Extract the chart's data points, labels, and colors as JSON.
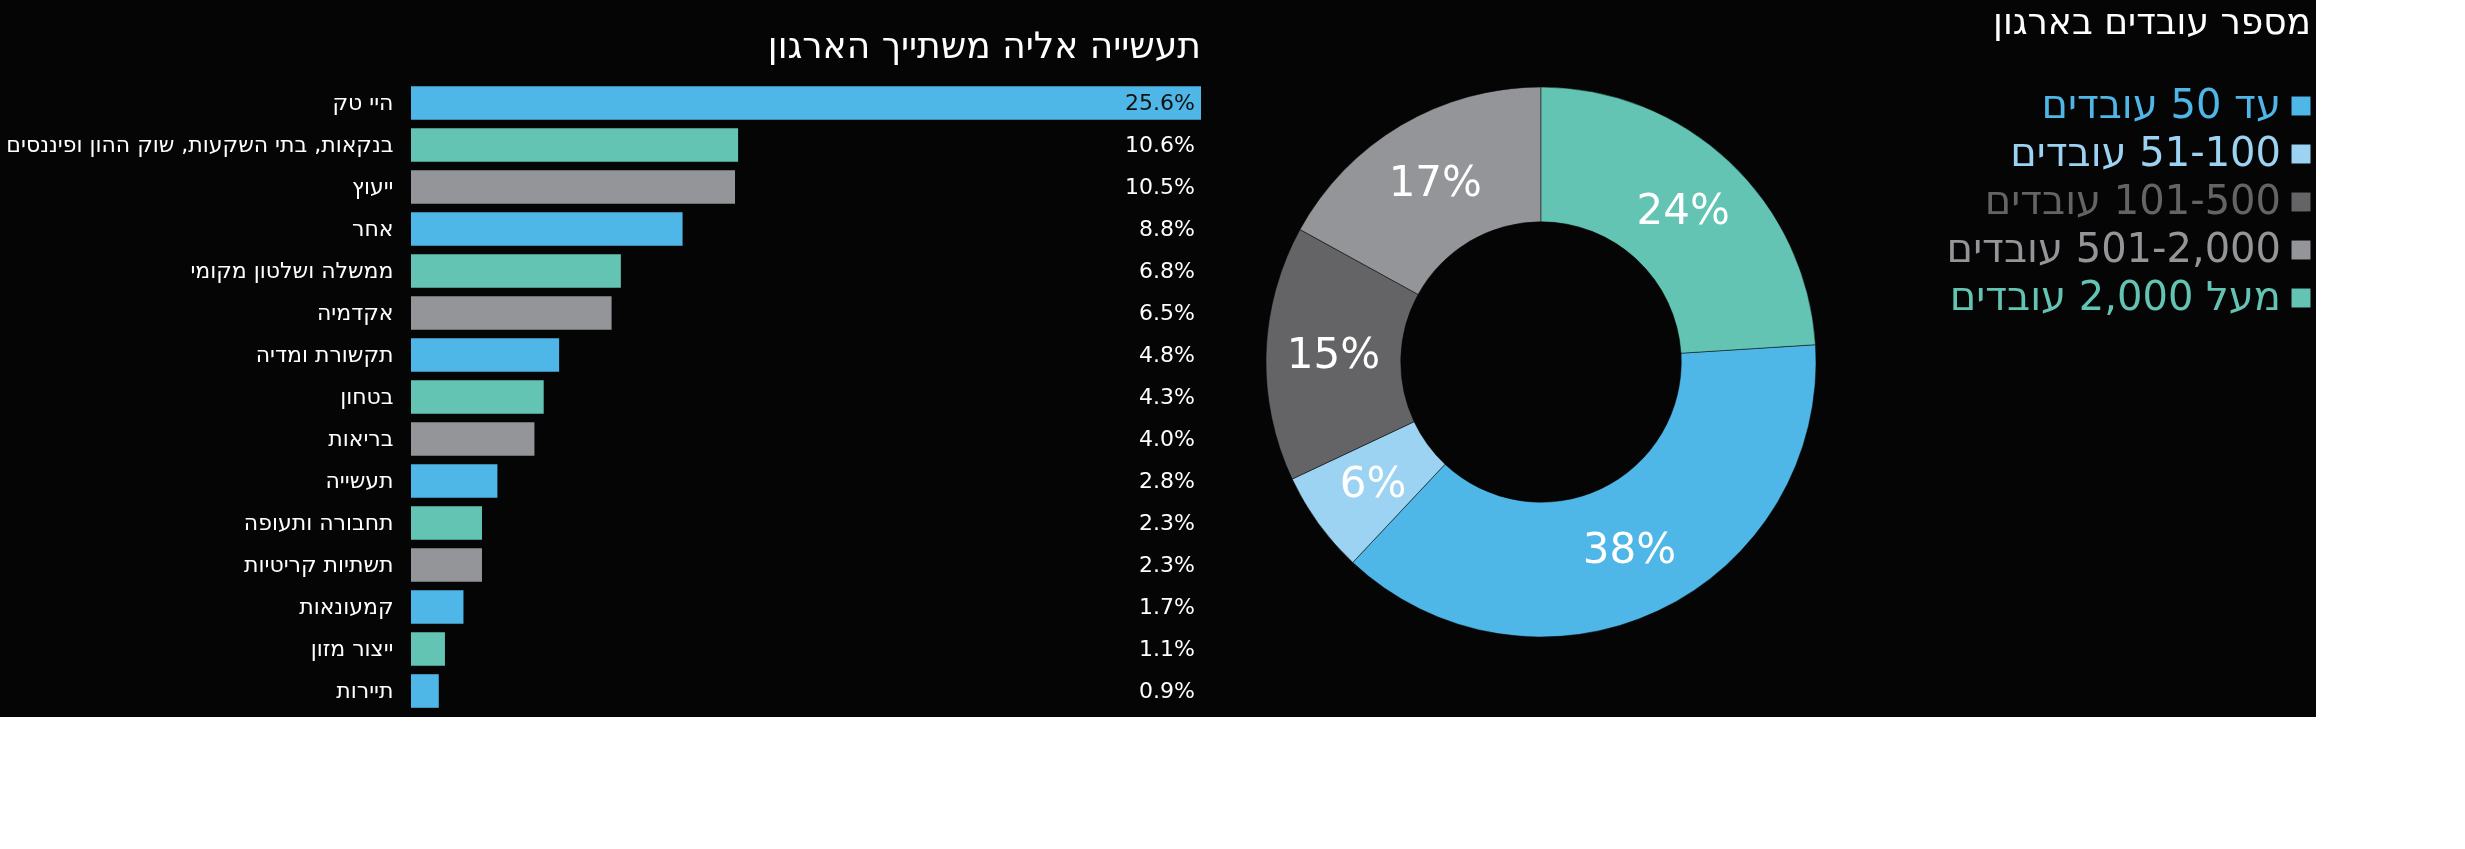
{
  "chart_data": [
    {
      "type": "bar",
      "orientation": "horizontal",
      "title": "תעשייה אליה משתייך הארגון",
      "categories": [
        "היי טק",
        "בנקאות, בתי השקעות, שוק ההון ופיננסים",
        "ייעוץ",
        "אחר",
        "ממשלה ושלטון מקומי",
        "אקדמיה",
        "תקשורת ומדיה",
        "בטחון",
        "בריאות",
        "תעשייה",
        "תחבורה ותעופה",
        "תשתיות קריטיות",
        "קמעונאות",
        "ייצור מזון",
        "תיירות"
      ],
      "values": [
        25.6,
        10.6,
        10.5,
        8.8,
        6.8,
        6.5,
        4.8,
        4.3,
        4.0,
        2.8,
        2.3,
        2.3,
        1.7,
        1.1,
        0.9
      ],
      "colors": [
        "#4fb6e8",
        "#63c4b4",
        "#939598",
        "#4fb6e8",
        "#63c4b4",
        "#939598",
        "#4fb6e8",
        "#63c4b4",
        "#939598",
        "#4fb6e8",
        "#63c4b4",
        "#939598",
        "#4fb6e8",
        "#63c4b4",
        "#4fb6e8"
      ],
      "value_labels": [
        "25.6%",
        "10.6%",
        "10.5%",
        "8.8%",
        "6.8%",
        "6.5%",
        "4.8%",
        "4.3%",
        "4.0%",
        "2.8%",
        "2.3%",
        "2.3%",
        "1.7%",
        "1.1%",
        "0.9%"
      ]
    },
    {
      "type": "donut",
      "title": "מספר עובדים בארגון",
      "legend": "right",
      "categories": [
        "עד 50 עובדים",
        "51-100 עובדים",
        "101-500 עובדים",
        "501-2,000 עובדים",
        "מעל 2,000 עובדים"
      ],
      "values": [
        38,
        6,
        15,
        17,
        24
      ],
      "colors": [
        "#4fb6e8",
        "#9dd3f2",
        "#646466",
        "#939598",
        "#63c4b4"
      ],
      "value_labels": [
        "38%",
        "6%",
        "15%",
        "17%",
        "24%"
      ]
    }
  ]
}
